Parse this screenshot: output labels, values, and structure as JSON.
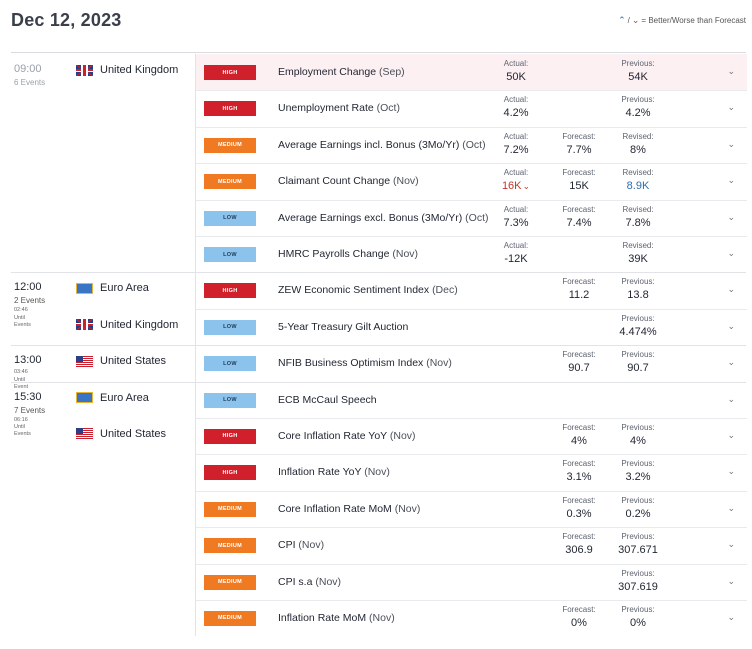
{
  "header": {
    "date": "Dec 12, 2023",
    "legend": {
      "up_icon": "up-arrow-icon",
      "down_icon": "down-arrow-icon",
      "separator": "/",
      "text": "= Better/Worse than Forecast"
    }
  },
  "groups": [
    {
      "time": "09:00",
      "past": true,
      "events_count": "6 Events",
      "until": [],
      "countries": [
        {
          "name": "United Kingdom",
          "flag": "uk-flag-icon"
        }
      ],
      "events": [
        {
          "impact": "HIGH",
          "name": "Employment Change",
          "period": "(Sep)",
          "highlight": true,
          "actual": {
            "label": "Actual:",
            "value": "50K"
          },
          "forecast": null,
          "previous": {
            "label": "Previous:",
            "value": "54K"
          }
        },
        {
          "impact": "HIGH",
          "name": "Unemployment Rate",
          "period": "(Oct)",
          "actual": {
            "label": "Actual:",
            "value": "4.2%"
          },
          "forecast": null,
          "previous": {
            "label": "Previous:",
            "value": "4.2%"
          }
        },
        {
          "impact": "MEDIUM",
          "name": "Average Earnings incl. Bonus (3Mo/Yr)",
          "period": "(Oct)",
          "actual": {
            "label": "Actual:",
            "value": "7.2%"
          },
          "forecast": {
            "label": "Forecast:",
            "value": "7.7%"
          },
          "previous": {
            "label": "Revised:",
            "value": "8%"
          }
        },
        {
          "impact": "MEDIUM",
          "name": "Claimant Count Change",
          "period": "(Nov)",
          "actual": {
            "label": "Actual:",
            "value": "16K",
            "worse": true
          },
          "forecast": {
            "label": "Forecast:",
            "value": "15K"
          },
          "previous": {
            "label": "Revised:",
            "value": "8.9K",
            "revised_color": "#2a6fb0"
          }
        },
        {
          "impact": "LOW",
          "name": "Average Earnings excl. Bonus (3Mo/Yr)",
          "period": "(Oct)",
          "actual": {
            "label": "Actual:",
            "value": "7.3%"
          },
          "forecast": {
            "label": "Forecast:",
            "value": "7.4%"
          },
          "previous": {
            "label": "Revised:",
            "value": "7.8%"
          }
        },
        {
          "impact": "LOW",
          "name": "HMRC Payrolls Change",
          "period": "(Nov)",
          "actual": {
            "label": "Actual:",
            "value": "-12K"
          },
          "forecast": null,
          "previous": {
            "label": "Revised:",
            "value": "39K"
          }
        }
      ]
    },
    {
      "time": "12:00",
      "past": false,
      "events_count": "2 Events",
      "until": [
        "02:46",
        "Until",
        "Events"
      ],
      "countries": [
        {
          "name": "Euro Area",
          "flag": "eu-flag-icon"
        },
        {
          "name": "United Kingdom",
          "flag": "uk-flag-icon"
        }
      ],
      "events": [
        {
          "impact": "HIGH",
          "name": "ZEW Economic Sentiment Index",
          "period": "(Dec)",
          "actual": null,
          "forecast": {
            "label": "Forecast:",
            "value": "11.2"
          },
          "previous": {
            "label": "Previous:",
            "value": "13.8"
          }
        },
        {
          "impact": "LOW",
          "name": "5-Year Treasury Gilt Auction",
          "period": "",
          "actual": null,
          "forecast": null,
          "previous": {
            "label": "Previous:",
            "value": "4.474%"
          }
        }
      ]
    },
    {
      "time": "13:00",
      "past": false,
      "events_count": "",
      "until": [
        "03:46",
        "Until",
        "Event"
      ],
      "countries": [
        {
          "name": "United States",
          "flag": "us-flag-icon"
        }
      ],
      "events": [
        {
          "impact": "LOW",
          "name": "NFIB Business Optimism Index",
          "period": "(Nov)",
          "actual": null,
          "forecast": {
            "label": "Forecast:",
            "value": "90.7"
          },
          "previous": {
            "label": "Previous:",
            "value": "90.7"
          }
        }
      ]
    },
    {
      "time": "15:30",
      "past": false,
      "events_count": "7 Events",
      "until": [
        "06:16",
        "Until",
        "Events"
      ],
      "countries": [
        {
          "name": "Euro Area",
          "flag": "eu-flag-icon"
        },
        {
          "name": "United States",
          "flag": "us-flag-icon"
        }
      ],
      "events": [
        {
          "impact": "LOW",
          "name": "ECB McCaul Speech",
          "period": "",
          "actual": null,
          "forecast": null,
          "previous": null
        },
        {
          "impact": "HIGH",
          "name": "Core Inflation Rate YoY",
          "period": "(Nov)",
          "actual": null,
          "forecast": {
            "label": "Forecast:",
            "value": "4%"
          },
          "previous": {
            "label": "Previous:",
            "value": "4%"
          }
        },
        {
          "impact": "HIGH",
          "name": "Inflation Rate YoY",
          "period": "(Nov)",
          "actual": null,
          "forecast": {
            "label": "Forecast:",
            "value": "3.1%"
          },
          "previous": {
            "label": "Previous:",
            "value": "3.2%"
          }
        },
        {
          "impact": "MEDIUM",
          "name": "Core Inflation Rate MoM",
          "period": "(Nov)",
          "actual": null,
          "forecast": {
            "label": "Forecast:",
            "value": "0.3%"
          },
          "previous": {
            "label": "Previous:",
            "value": "0.2%"
          }
        },
        {
          "impact": "MEDIUM",
          "name": "CPI",
          "period": "(Nov)",
          "actual": null,
          "forecast": {
            "label": "Forecast:",
            "value": "306.9"
          },
          "previous": {
            "label": "Previous:",
            "value": "307.671"
          }
        },
        {
          "impact": "MEDIUM",
          "name": "CPI s.a",
          "period": "(Nov)",
          "actual": null,
          "forecast": null,
          "previous": {
            "label": "Previous:",
            "value": "307.619"
          }
        },
        {
          "impact": "MEDIUM",
          "name": "Inflation Rate MoM",
          "period": "(Nov)",
          "actual": null,
          "forecast": {
            "label": "Forecast:",
            "value": "0%"
          },
          "previous": {
            "label": "Previous:",
            "value": "0%"
          }
        }
      ]
    }
  ]
}
